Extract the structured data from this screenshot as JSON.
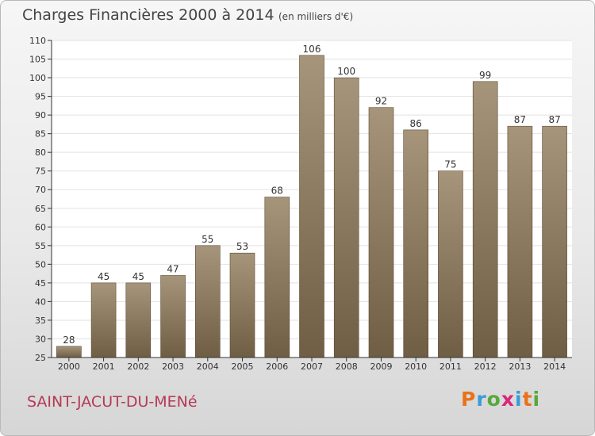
{
  "header": {
    "title": "Charges Financières 2000 à 2014",
    "unit": "(en milliers d'€)"
  },
  "footer": {
    "commune": "SAINT-JACUT-DU-MENé",
    "logo_text": "Proxiti",
    "logo_colors": [
      "#e8731a",
      "#3a9bd9",
      "#58a83c",
      "#d9267a",
      "#3a9bd9",
      "#e8731a",
      "#58a83c"
    ]
  },
  "colors": {
    "bar_top": "#a6957a",
    "bar_bottom": "#6f5e44",
    "bar_edge": "#5a4a34",
    "axis": "#333333",
    "grid": "#e2e2e2",
    "text": "#333333"
  },
  "chart_data": {
    "type": "bar",
    "title": "Charges Financières 2000 à 2014",
    "subtitle": "(en milliers d'€)",
    "categories": [
      "2000",
      "2001",
      "2002",
      "2003",
      "2004",
      "2005",
      "2006",
      "2007",
      "2008",
      "2009",
      "2010",
      "2011",
      "2012",
      "2013",
      "2014"
    ],
    "values": [
      28,
      45,
      45,
      47,
      55,
      53,
      68,
      106,
      100,
      92,
      86,
      75,
      99,
      87,
      87
    ],
    "ylim": [
      25,
      110
    ],
    "yticks": [
      25,
      30,
      35,
      40,
      45,
      50,
      55,
      60,
      65,
      70,
      75,
      80,
      85,
      90,
      95,
      100,
      105,
      110
    ],
    "grid": "horizontal",
    "data_labels": true,
    "xlabel": "",
    "ylabel": ""
  }
}
